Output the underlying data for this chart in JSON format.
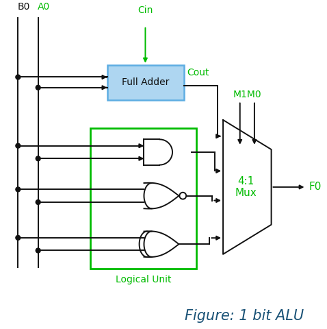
{
  "title": "Figure: 1 bit ALU",
  "title_color": "#1a5276",
  "title_fontsize": 15,
  "green": "#00bb00",
  "black": "#111111",
  "white": "#ffffff",
  "blue_fill": "#aed6f1",
  "blue_edge": "#5dade2",
  "label_B0": "B0",
  "label_A0": "A0",
  "label_Cin": "Cin",
  "label_Cout": "Cout",
  "label_M1M0": "M1M0",
  "label_FA": "Full Adder",
  "label_LU": "Logical Unit",
  "label_mux": "4:1\nMux",
  "label_F0": "F0",
  "bg": "#ffffff"
}
